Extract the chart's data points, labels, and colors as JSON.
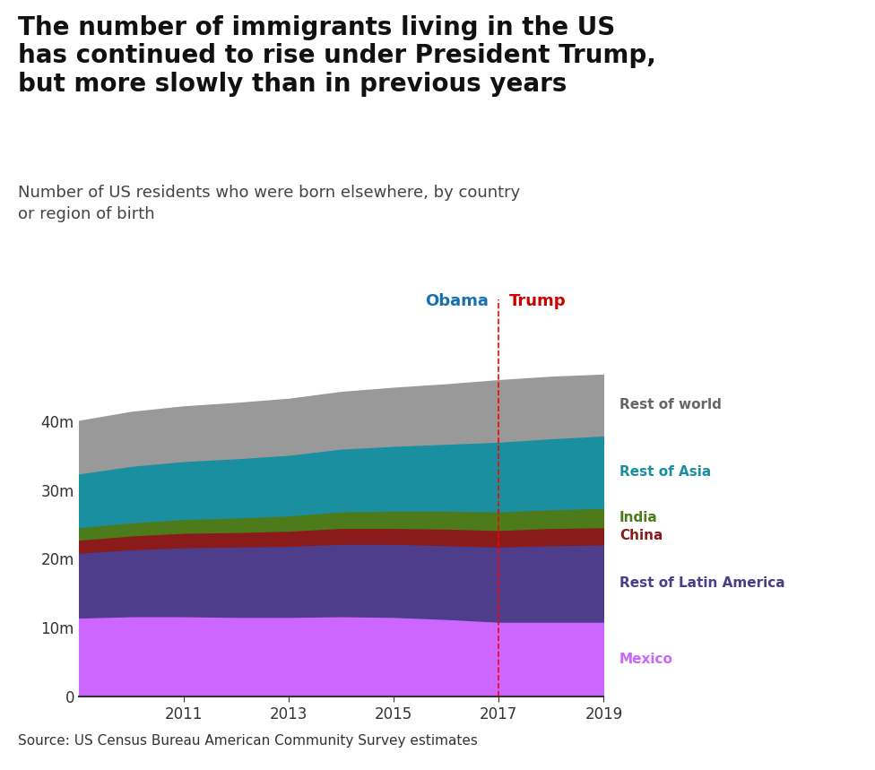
{
  "years": [
    2009,
    2010,
    2011,
    2012,
    2013,
    2014,
    2015,
    2016,
    2017,
    2018,
    2019
  ],
  "mexico": [
    11.5,
    11.7,
    11.7,
    11.6,
    11.6,
    11.7,
    11.6,
    11.3,
    10.9,
    10.9,
    10.9
  ],
  "rest_of_latin_america": [
    9.4,
    9.7,
    10.0,
    10.2,
    10.3,
    10.5,
    10.6,
    10.7,
    10.9,
    11.1,
    11.2
  ],
  "china": [
    1.9,
    2.0,
    2.1,
    2.1,
    2.2,
    2.3,
    2.3,
    2.4,
    2.4,
    2.5,
    2.5
  ],
  "india": [
    1.8,
    1.9,
    2.0,
    2.1,
    2.2,
    2.4,
    2.5,
    2.6,
    2.7,
    2.7,
    2.8
  ],
  "rest_of_asia": [
    7.8,
    8.2,
    8.4,
    8.6,
    8.8,
    9.1,
    9.4,
    9.7,
    10.1,
    10.3,
    10.5
  ],
  "rest_of_world": [
    7.6,
    7.8,
    7.9,
    8.0,
    8.1,
    8.2,
    8.4,
    8.6,
    8.9,
    8.9,
    8.8
  ],
  "colors": {
    "mexico": "#cc66ff",
    "rest_of_latin_america": "#4d3d8a",
    "china": "#8b1a1a",
    "india": "#4d7a1a",
    "rest_of_asia": "#1a8fa0",
    "rest_of_world": "#999999"
  },
  "title_line1": "The number of immigrants living in the US",
  "title_line2": "has continued to rise under President Trump,",
  "title_line3": "but more slowly than in previous years",
  "subtitle": "Number of US residents who were born elsewhere, by country\nor region of birth",
  "source": "Source: US Census Bureau American Community Survey estimates",
  "obama_label": "Obama",
  "trump_label": "Trump",
  "transition_year": 2017,
  "yticks": [
    0,
    10,
    20,
    30,
    40
  ],
  "ylim": [
    0,
    48
  ],
  "xlim": [
    2009,
    2019
  ],
  "xticks": [
    2011,
    2013,
    2015,
    2017,
    2019
  ],
  "right_labels": [
    "Rest of world",
    "Rest of Asia",
    "India",
    "China",
    "Rest of Latin America",
    "Mexico"
  ],
  "right_label_colors": [
    "#666666",
    "#1a8fa0",
    "#4d7a1a",
    "#8b1a1a",
    "#4d3d8a",
    "#cc66ff"
  ]
}
